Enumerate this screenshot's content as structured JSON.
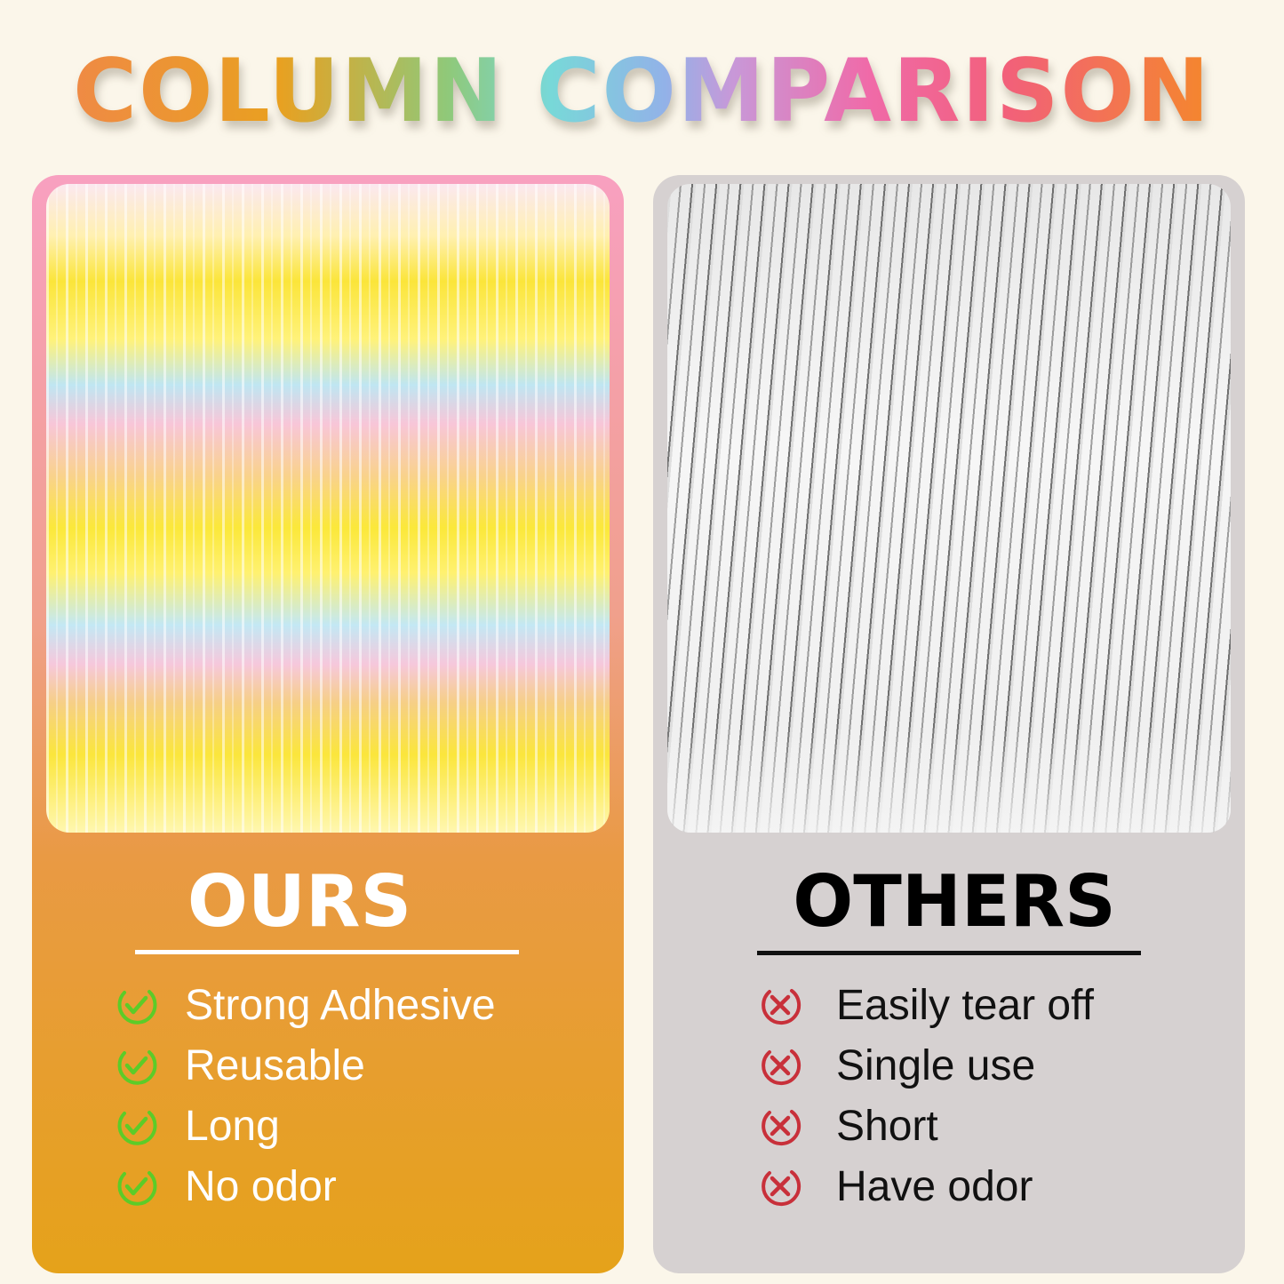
{
  "title": "COLUMN COMPARISON",
  "ours": {
    "heading": "OURS",
    "items": [
      {
        "label": "Strong Adhesive",
        "icon": "check-circle-icon"
      },
      {
        "label": "Reusable",
        "icon": "check-circle-icon"
      },
      {
        "label": "Long",
        "icon": "check-circle-icon"
      },
      {
        "label": "No odor",
        "icon": "check-circle-icon"
      }
    ],
    "icon_color": "#5ccc28"
  },
  "others": {
    "heading": "OTHERS",
    "items": [
      {
        "label": "Easily tear off",
        "icon": "x-circle-icon"
      },
      {
        "label": "Single use",
        "icon": "x-circle-icon"
      },
      {
        "label": "Short",
        "icon": "x-circle-icon"
      },
      {
        "label": "Have odor",
        "icon": "x-circle-icon"
      }
    ],
    "icon_color": "#c8303a"
  }
}
